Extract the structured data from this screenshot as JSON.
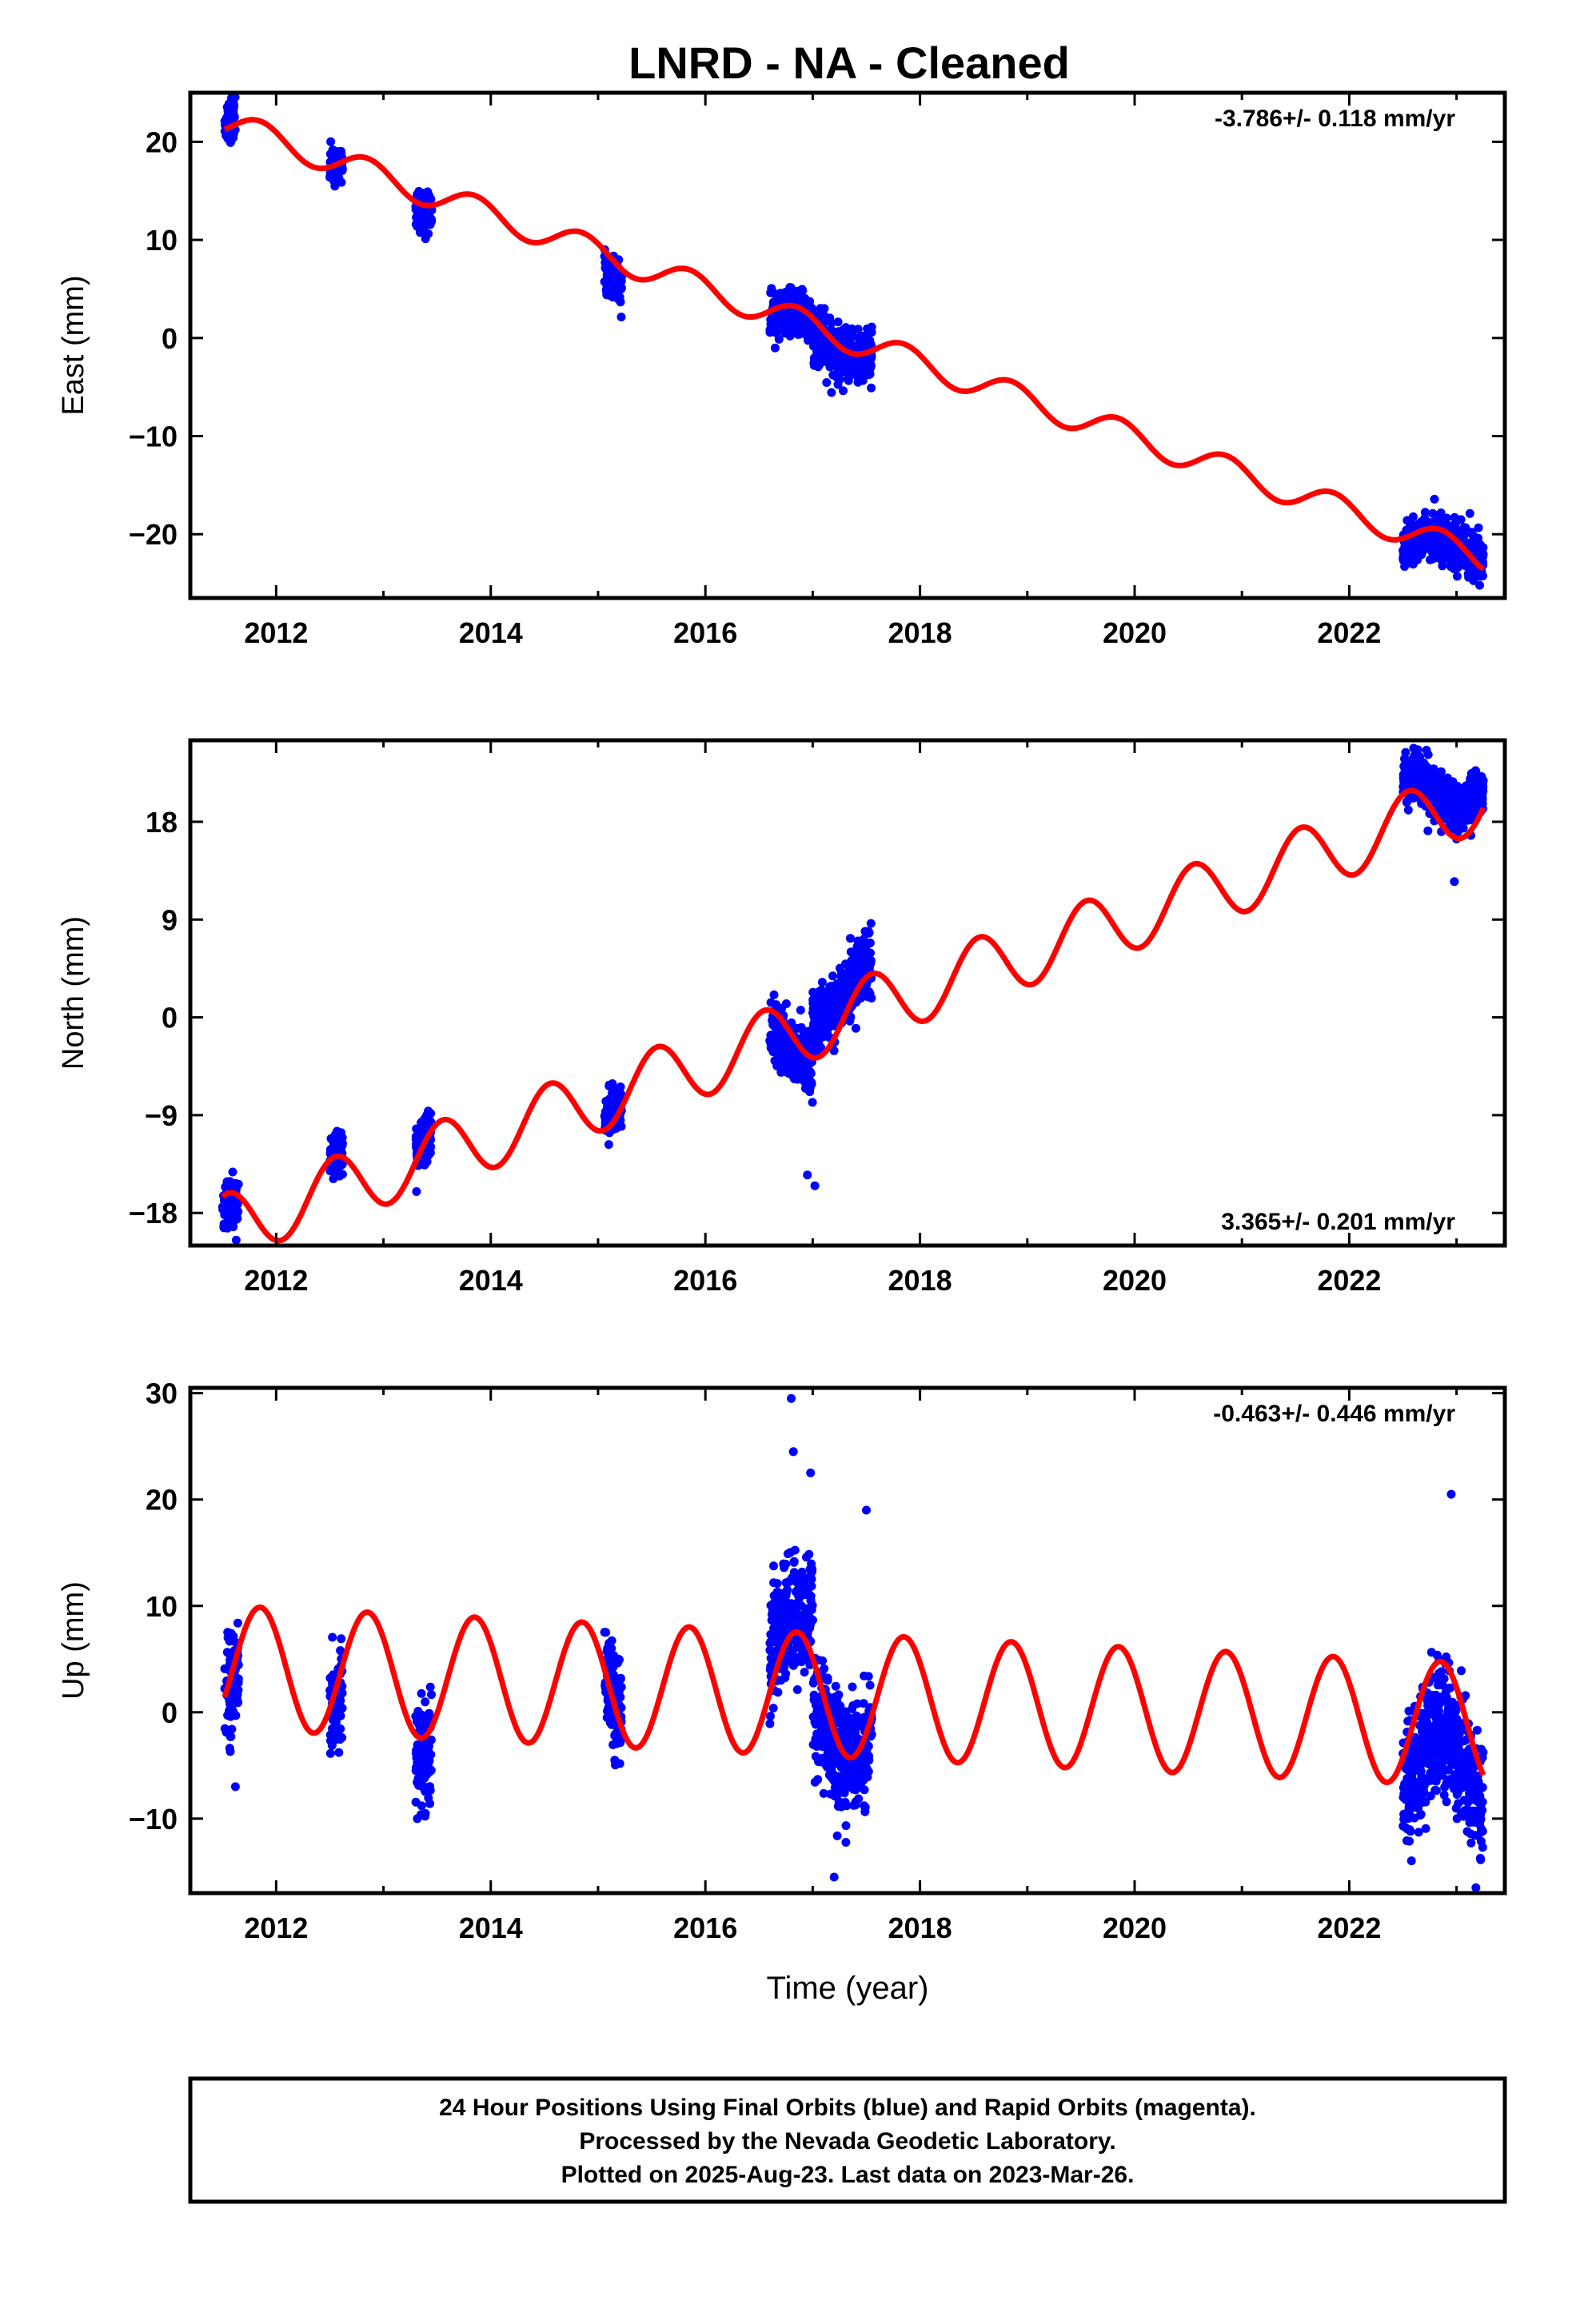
{
  "chart_data": [
    {
      "type": "scatter",
      "ylabel": "East (mm)",
      "ylim": [
        -26.5,
        25
      ],
      "xlim": [
        2011.2,
        2023.45
      ],
      "xticks": [
        2012,
        2014,
        2016,
        2018,
        2020,
        2022
      ],
      "yticks": [
        -20,
        -10,
        0,
        10,
        20
      ],
      "rate": "-3.786+/- 0.118 mm/yr",
      "rate_position": "top-right",
      "trend_rate": -3.786,
      "trend_ref": {
        "t": 2017.4,
        "v": -0.3
      },
      "seasonal_amp": 1.4,
      "seasonal_phase": 2011.6,
      "data_segments": [
        {
          "t0": 2011.52,
          "t1": 2011.62,
          "center": 22.0,
          "spread": 2.2
        },
        {
          "t0": 2012.5,
          "t1": 2012.62,
          "center": 17.8,
          "spread": 2.0
        },
        {
          "t0": 2013.3,
          "t1": 2013.45,
          "center": 13.0,
          "spread": 2.2
        },
        {
          "t0": 2015.06,
          "t1": 2015.22,
          "center": 6.0,
          "spread": 2.5
        },
        {
          "t0": 2016.6,
          "t1": 2017.0,
          "center": 2.5,
          "spread": 2.5
        },
        {
          "t0": 2017.0,
          "t1": 2017.55,
          "center": -1.5,
          "spread": 3.2
        },
        {
          "t0": 2022.5,
          "t1": 2023.25,
          "center": -20.5,
          "spread": 2.6
        }
      ]
    },
    {
      "type": "scatter",
      "ylabel": "North (mm)",
      "ylim": [
        -21,
        25.5
      ],
      "xlim": [
        2011.2,
        2023.45
      ],
      "xticks": [
        2012,
        2014,
        2016,
        2018,
        2020,
        2022
      ],
      "yticks": [
        -18,
        -9,
        0,
        9,
        18
      ],
      "rate": "3.365+/- 0.201 mm/yr",
      "rate_position": "bottom-right",
      "trend_rate": 3.365,
      "trend_ref": {
        "t": 2017.4,
        "v": 0.5
      },
      "seasonal_amp": 3.0,
      "seasonal_phase": 2011.3,
      "data_segments": [
        {
          "t0": 2011.5,
          "t1": 2011.65,
          "center": -17.0,
          "spread": 2.5
        },
        {
          "t0": 2012.5,
          "t1": 2012.62,
          "center": -12.5,
          "spread": 2.0
        },
        {
          "t0": 2013.3,
          "t1": 2013.45,
          "center": -11.5,
          "spread": 2.5
        },
        {
          "t0": 2015.06,
          "t1": 2015.22,
          "center": -8.8,
          "spread": 2.2
        },
        {
          "t0": 2016.6,
          "t1": 2017.0,
          "center": -3.0,
          "spread": 3.0
        },
        {
          "t0": 2017.0,
          "t1": 2017.55,
          "center": 2.0,
          "spread": 3.0
        },
        {
          "t0": 2022.5,
          "t1": 2023.25,
          "center": 20.0,
          "spread": 2.5
        }
      ],
      "outliers": [
        {
          "t": 2016.95,
          "v": -14.5
        },
        {
          "t": 2017.02,
          "v": -15.5
        },
        {
          "t": 2022.98,
          "v": 12.5
        }
      ]
    },
    {
      "type": "scatter",
      "ylabel": "Up (mm)",
      "xlabel": "Time (year)",
      "ylim": [
        -17,
        30.5
      ],
      "xlim": [
        2011.2,
        2023.45
      ],
      "xticks": [
        2012,
        2014,
        2016,
        2018,
        2020,
        2022
      ],
      "yticks": [
        -10,
        0,
        10,
        20,
        30
      ],
      "rate": "-0.463+/- 0.446 mm/yr",
      "rate_position": "top-right",
      "trend_rate": -0.463,
      "trend_ref": {
        "t": 2017.4,
        "v": 1.5
      },
      "seasonal_amp": 5.8,
      "seasonal_phase": 2011.6,
      "data_segments": [
        {
          "t0": 2011.52,
          "t1": 2011.65,
          "center": 2.5,
          "spread": 5.0
        },
        {
          "t0": 2012.5,
          "t1": 2012.62,
          "center": 1.0,
          "spread": 5.0
        },
        {
          "t0": 2013.3,
          "t1": 2013.45,
          "center": -4.0,
          "spread": 5.5
        },
        {
          "t0": 2015.06,
          "t1": 2015.22,
          "center": 2.0,
          "spread": 5.0
        },
        {
          "t0": 2016.6,
          "t1": 2017.0,
          "center": 9.0,
          "spread": 6.0
        },
        {
          "t0": 2017.0,
          "t1": 2017.55,
          "center": -4.0,
          "spread": 6.0
        },
        {
          "t0": 2022.5,
          "t1": 2023.25,
          "center": -2.0,
          "spread": 6.5
        }
      ],
      "outliers": [
        {
          "t": 2016.8,
          "v": 29.5
        },
        {
          "t": 2016.82,
          "v": 24.5
        },
        {
          "t": 2016.98,
          "v": 22.5
        },
        {
          "t": 2017.5,
          "v": 19.0
        },
        {
          "t": 2022.95,
          "v": 20.5
        },
        {
          "t": 2017.2,
          "v": -15.5
        },
        {
          "t": 2023.18,
          "v": -16.5
        },
        {
          "t": 2011.62,
          "v": -7.0
        }
      ]
    }
  ],
  "title": "LNRD  - NA - Cleaned",
  "caption_lines": [
    "24 Hour Positions Using Final Orbits (blue) and Rapid Orbits (magenta).",
    "Processed by the Nevada Geodetic Laboratory.",
    "Plotted on 2025-Aug-23. Last data on 2023-Mar-26."
  ],
  "colors": {
    "points": "#0000ff",
    "model_line": "#ff0000",
    "frame": "#000000"
  }
}
